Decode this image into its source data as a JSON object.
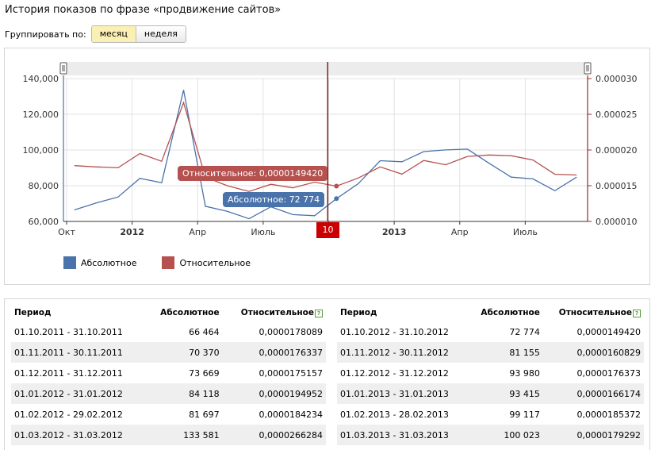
{
  "page": {
    "title": "История показов по фразе «продвижение сайтов»",
    "group_by_label": "Группировать по:",
    "group_options": [
      {
        "label": "месяц",
        "active": true
      },
      {
        "label": "неделя",
        "active": false
      }
    ]
  },
  "chart_data": {
    "type": "line",
    "x": [
      "2011-10",
      "2011-11",
      "2011-12",
      "2012-01",
      "2012-02",
      "2012-03",
      "2012-04",
      "2012-05",
      "2012-06",
      "2012-07",
      "2012-08",
      "2012-09",
      "2012-10",
      "2012-11",
      "2012-12",
      "2013-01",
      "2013-02",
      "2013-03",
      "2013-04",
      "2013-05",
      "2013-06",
      "2013-07",
      "2013-08",
      "2013-09"
    ],
    "x_tick_labels": [
      "Окт",
      "2012",
      "Апр",
      "Июль",
      "Окт",
      "2013",
      "Апр",
      "Июль"
    ],
    "series": [
      {
        "name": "Абсолютное",
        "color": "#4a72ab",
        "axis": "left",
        "values": [
          66464,
          70370,
          73669,
          84118,
          81697,
          133581,
          68500,
          65700,
          61500,
          68200,
          63800,
          63200,
          72774,
          81155,
          93980,
          93415,
          99117,
          100023,
          100500,
          92500,
          84800,
          83800,
          77200,
          84800
        ]
      },
      {
        "name": "Относительное",
        "color": "#b5514f",
        "axis": "right",
        "values": [
          1.78089e-05,
          1.76337e-05,
          1.75157e-05,
          1.94952e-05,
          1.84234e-05,
          2.66284e-05,
          1.62e-05,
          1.5e-05,
          1.42e-05,
          1.52e-05,
          1.47e-05,
          1.55e-05,
          1.4942e-05,
          1.60829e-05,
          1.76373e-05,
          1.66174e-05,
          1.85372e-05,
          1.79292e-05,
          1.91e-05,
          1.93e-05,
          1.92e-05,
          1.86e-05,
          1.66e-05,
          1.65e-05
        ]
      }
    ],
    "left_axis": {
      "ylim": [
        60000,
        140000
      ],
      "ticks": [
        "60,000",
        "80,000",
        "100,000",
        "120,000",
        "140,000"
      ]
    },
    "right_axis": {
      "ylim": [
        1e-05,
        3e-05
      ],
      "ticks": [
        "0.000010",
        "0.000015",
        "0.000020",
        "0.000025",
        "0.000030"
      ]
    },
    "grid": true,
    "legend_position": "bottom-left",
    "cursor_index": 12,
    "cursor_label": "10",
    "tooltips": {
      "relative": "Относительное: 0,0000149420",
      "absolute": "Абсолютное: 72 774"
    }
  },
  "tables": {
    "headers": {
      "period": "Период",
      "absolute": "Абсолютное",
      "relative": "Относительное",
      "help_icon": "?"
    },
    "left": [
      {
        "period": "01.10.2011 - 31.10.2011",
        "absolute": "66 464",
        "relative": "0,0000178089"
      },
      {
        "period": "01.11.2011 - 30.11.2011",
        "absolute": "70 370",
        "relative": "0,0000176337"
      },
      {
        "period": "01.12.2011 - 31.12.2011",
        "absolute": "73 669",
        "relative": "0,0000175157"
      },
      {
        "period": "01.01.2012 - 31.01.2012",
        "absolute": "84 118",
        "relative": "0,0000194952"
      },
      {
        "period": "01.02.2012 - 29.02.2012",
        "absolute": "81 697",
        "relative": "0,0000184234"
      },
      {
        "period": "01.03.2012 - 31.03.2012",
        "absolute": "133 581",
        "relative": "0,0000266284"
      }
    ],
    "right": [
      {
        "period": "01.10.2012 - 31.10.2012",
        "absolute": "72 774",
        "relative": "0,0000149420"
      },
      {
        "period": "01.11.2012 - 30.11.2012",
        "absolute": "81 155",
        "relative": "0,0000160829"
      },
      {
        "period": "01.12.2012 - 31.12.2012",
        "absolute": "93 980",
        "relative": "0,0000176373"
      },
      {
        "period": "01.01.2013 - 31.01.2013",
        "absolute": "93 415",
        "relative": "0,0000166174"
      },
      {
        "period": "01.02.2013 - 28.02.2013",
        "absolute": "99 117",
        "relative": "0,0000185372"
      },
      {
        "period": "01.03.2013 - 31.03.2013",
        "absolute": "100 023",
        "relative": "0,0000179292"
      }
    ]
  }
}
